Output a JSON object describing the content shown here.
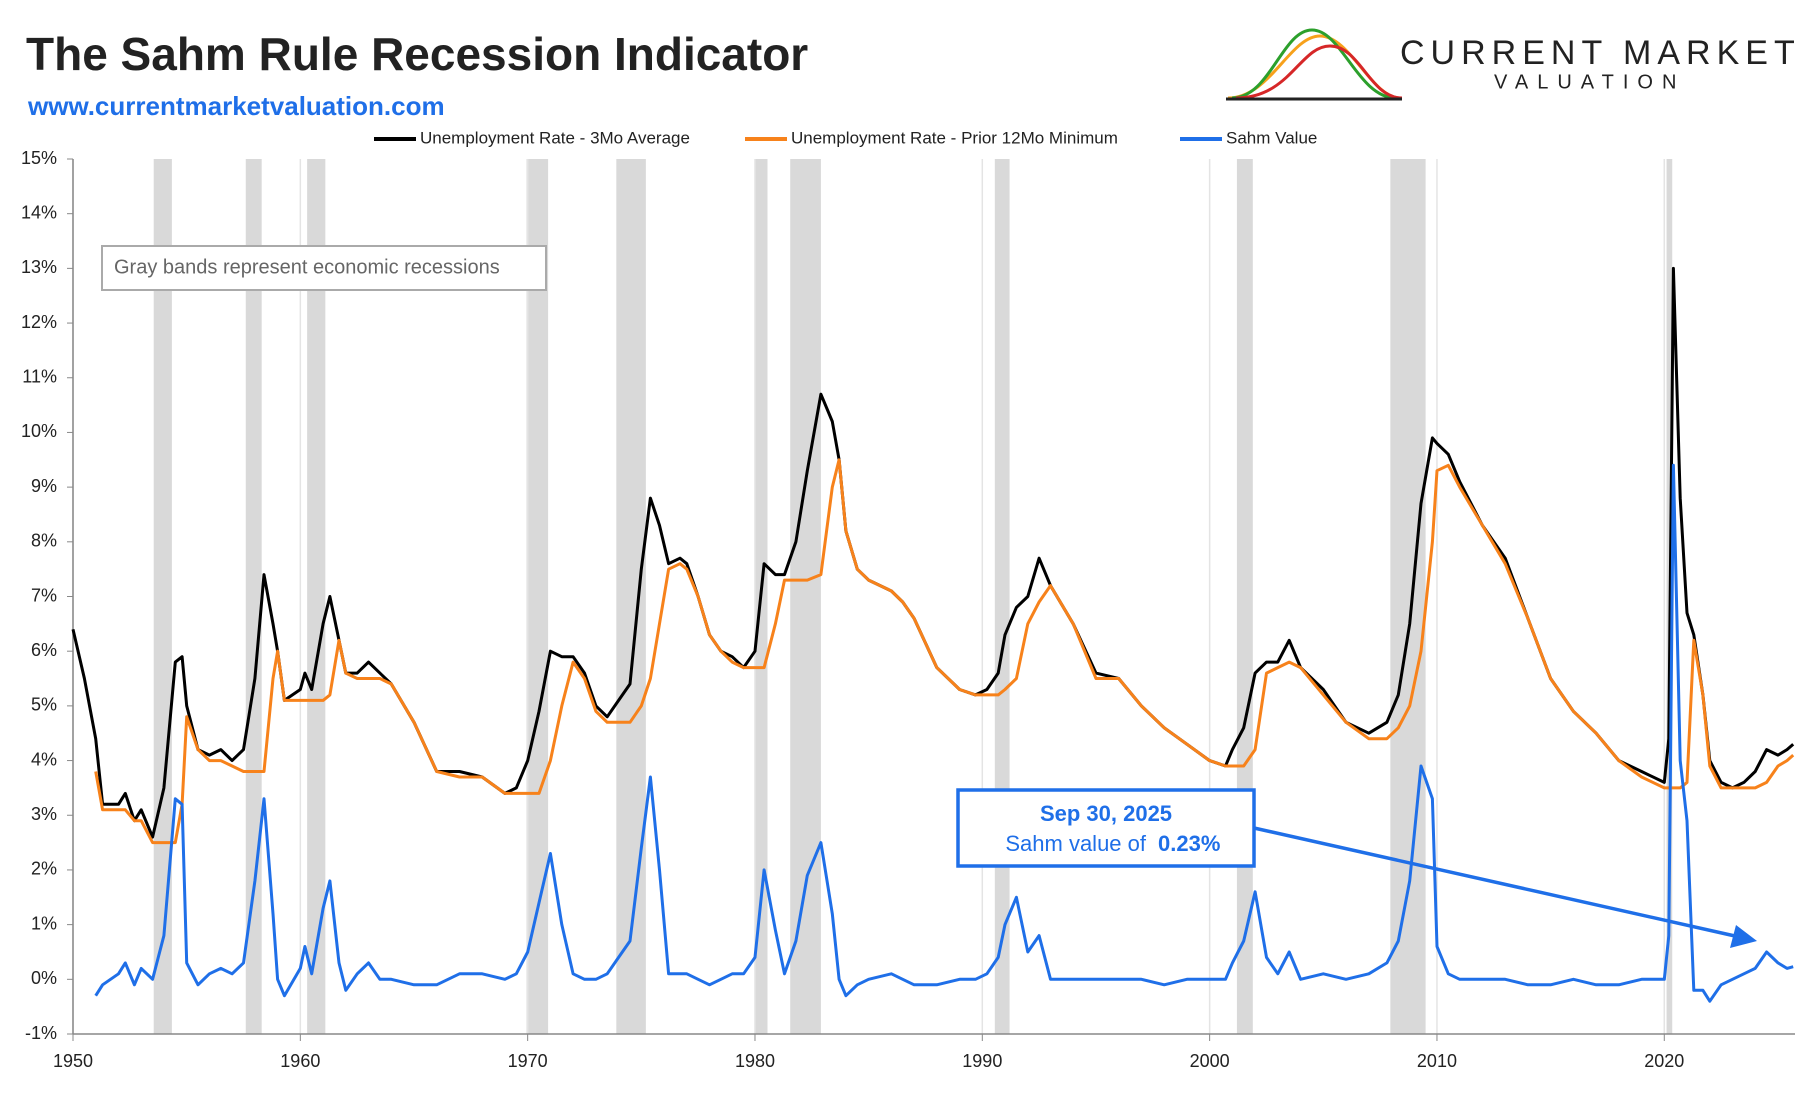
{
  "chart_data": {
    "type": "line",
    "title": "The Sahm Rule Recession Indicator",
    "subtitle": "www.currentmarketvaluation.com",
    "logo": [
      "CURRENT MARKET",
      "VALUATION"
    ],
    "note": "Gray bands represent economic recessions",
    "annotation": {
      "date": "Sep 30, 2025",
      "text": "Sahm value of",
      "value_label": "0.23%"
    },
    "xlim": [
      1950,
      2025.75
    ],
    "xticks": [
      1950,
      1960,
      1970,
      1980,
      1990,
      2000,
      2010,
      2020
    ],
    "ylim": [
      -1,
      15
    ],
    "yticks": [
      {
        "value": -1,
        "label": "-1%"
      },
      {
        "value": 0,
        "label": "0%"
      },
      {
        "value": 1,
        "label": "1%"
      },
      {
        "value": 2,
        "label": "2%"
      },
      {
        "value": 3,
        "label": "3%"
      },
      {
        "value": 4,
        "label": "4%"
      },
      {
        "value": 5,
        "label": "5%"
      },
      {
        "value": 6,
        "label": "6%"
      },
      {
        "value": 7,
        "label": "7%"
      },
      {
        "value": 8,
        "label": "8%"
      },
      {
        "value": 9,
        "label": "9%"
      },
      {
        "value": 10,
        "label": "10%"
      },
      {
        "value": 11,
        "label": "11%"
      },
      {
        "value": 12,
        "label": "12%"
      },
      {
        "value": 13,
        "label": "13%"
      },
      {
        "value": 14,
        "label": "14%"
      },
      {
        "value": 15,
        "label": "15%"
      }
    ],
    "grid": true,
    "recession_color": "#d9d9d9",
    "recessions": [
      [
        1953.55,
        1954.35
      ],
      [
        1957.6,
        1958.3
      ],
      [
        1960.3,
        1961.1
      ],
      [
        1969.95,
        1970.9
      ],
      [
        1973.9,
        1975.2
      ],
      [
        1980.0,
        1980.55
      ],
      [
        1981.55,
        1982.9
      ],
      [
        1990.55,
        1991.2
      ],
      [
        2001.2,
        2001.9
      ],
      [
        2007.95,
        2009.5
      ],
      [
        2020.1,
        2020.35
      ]
    ],
    "x": [
      1950.0,
      1950.5,
      1951.0,
      1951.3,
      1952.0,
      1952.3,
      1952.7,
      1953.0,
      1953.5,
      1954.0,
      1954.5,
      1954.8,
      1955.0,
      1955.5,
      1956.0,
      1956.5,
      1957.0,
      1957.5,
      1958.0,
      1958.4,
      1958.8,
      1959.0,
      1959.3,
      1960.0,
      1960.2,
      1960.5,
      1961.0,
      1961.3,
      1961.7,
      1962.0,
      1962.5,
      1963.0,
      1963.5,
      1964.0,
      1965.0,
      1966.0,
      1967.0,
      1968.0,
      1969.0,
      1969.5,
      1970.0,
      1970.5,
      1971.0,
      1971.5,
      1972.0,
      1972.5,
      1973.0,
      1973.5,
      1974.0,
      1974.5,
      1975.0,
      1975.4,
      1975.8,
      1976.2,
      1976.7,
      1977.0,
      1977.5,
      1978.0,
      1978.5,
      1979.0,
      1979.5,
      1980.0,
      1980.4,
      1980.9,
      1981.3,
      1981.8,
      1982.3,
      1982.9,
      1983.4,
      1983.7,
      1984.0,
      1984.5,
      1985.0,
      1986.0,
      1986.5,
      1987.0,
      1988.0,
      1989.0,
      1989.7,
      1990.2,
      1990.7,
      1991.0,
      1991.5,
      1992.0,
      1992.5,
      1993.0,
      1994.0,
      1995.0,
      1996.0,
      1997.0,
      1998.0,
      1999.0,
      2000.0,
      2000.7,
      2001.0,
      2001.5,
      2002.0,
      2002.5,
      2003.0,
      2003.5,
      2004.0,
      2005.0,
      2006.0,
      2007.0,
      2007.8,
      2008.3,
      2008.8,
      2009.3,
      2009.8,
      2010.0,
      2010.5,
      2011.0,
      2012.0,
      2013.0,
      2014.0,
      2015.0,
      2016.0,
      2017.0,
      2018.0,
      2019.0,
      2020.0,
      2020.2,
      2020.4,
      2020.7,
      2021.0,
      2021.3,
      2021.7,
      2022.0,
      2022.5,
      2023.0,
      2023.5,
      2024.0,
      2024.5,
      2025.0,
      2025.4,
      2025.67
    ],
    "series": [
      {
        "name": "Unemployment Rate - 3Mo Average",
        "color": "#000000",
        "values": [
          6.4,
          5.5,
          4.4,
          3.2,
          3.2,
          3.4,
          2.9,
          3.1,
          2.6,
          3.5,
          5.8,
          5.9,
          5.0,
          4.2,
          4.1,
          4.2,
          4.0,
          4.2,
          5.5,
          7.4,
          6.5,
          6.0,
          5.1,
          5.3,
          5.6,
          5.3,
          6.5,
          7.0,
          6.2,
          5.6,
          5.6,
          5.8,
          5.6,
          5.4,
          4.7,
          3.8,
          3.8,
          3.7,
          3.4,
          3.5,
          4.0,
          4.9,
          6.0,
          5.9,
          5.9,
          5.6,
          5.0,
          4.8,
          5.1,
          5.4,
          7.5,
          8.8,
          8.3,
          7.6,
          7.7,
          7.6,
          7.0,
          6.3,
          6.0,
          5.9,
          5.7,
          6.0,
          7.6,
          7.4,
          7.4,
          8.0,
          9.3,
          10.7,
          10.2,
          9.5,
          8.2,
          7.5,
          7.3,
          7.1,
          6.9,
          6.6,
          5.7,
          5.3,
          5.2,
          5.3,
          5.6,
          6.3,
          6.8,
          7.0,
          7.7,
          7.2,
          6.5,
          5.6,
          5.5,
          5.0,
          4.6,
          4.3,
          4.0,
          3.9,
          4.2,
          4.6,
          5.6,
          5.8,
          5.8,
          6.2,
          5.7,
          5.3,
          4.7,
          4.5,
          4.7,
          5.2,
          6.5,
          8.7,
          9.9,
          9.8,
          9.6,
          9.1,
          8.3,
          7.7,
          6.6,
          5.5,
          4.9,
          4.5,
          4.0,
          3.8,
          3.6,
          4.4,
          13.0,
          8.8,
          6.7,
          6.3,
          5.2,
          4.0,
          3.6,
          3.5,
          3.6,
          3.8,
          4.2,
          4.1,
          4.2,
          4.3
        ]
      },
      {
        "name": "Unemployment Rate - Prior 12Mo Minimum",
        "color": "#f7821b",
        "values": [
          null,
          null,
          3.8,
          3.1,
          3.1,
          3.1,
          2.9,
          2.9,
          2.5,
          2.5,
          2.5,
          3.2,
          4.8,
          4.2,
          4.0,
          4.0,
          3.9,
          3.8,
          3.8,
          3.8,
          5.5,
          6.0,
          5.1,
          5.1,
          5.1,
          5.1,
          5.1,
          5.2,
          6.2,
          5.6,
          5.5,
          5.5,
          5.5,
          5.4,
          4.7,
          3.8,
          3.7,
          3.7,
          3.4,
          3.4,
          3.4,
          3.4,
          4.0,
          5.0,
          5.8,
          5.5,
          4.9,
          4.7,
          4.7,
          4.7,
          5.0,
          5.5,
          6.5,
          7.5,
          7.6,
          7.5,
          7.0,
          6.3,
          6.0,
          5.8,
          5.7,
          5.7,
          5.7,
          6.5,
          7.3,
          7.3,
          7.3,
          7.4,
          9.0,
          9.5,
          8.2,
          7.5,
          7.3,
          7.1,
          6.9,
          6.6,
          5.7,
          5.3,
          5.2,
          5.2,
          5.2,
          5.3,
          5.5,
          6.5,
          6.9,
          7.2,
          6.5,
          5.5,
          5.5,
          5.0,
          4.6,
          4.3,
          4.0,
          3.9,
          3.9,
          3.9,
          4.2,
          5.6,
          5.7,
          5.8,
          5.7,
          5.2,
          4.7,
          4.4,
          4.4,
          4.6,
          5.0,
          6.0,
          8.0,
          9.3,
          9.4,
          9.0,
          8.3,
          7.6,
          6.6,
          5.5,
          4.9,
          4.5,
          4.0,
          3.7,
          3.5,
          3.5,
          3.5,
          3.5,
          3.6,
          6.2,
          5.2,
          3.9,
          3.5,
          3.5,
          3.5,
          3.5,
          3.6,
          3.9,
          4.0,
          4.1
        ]
      },
      {
        "name": "Sahm Value",
        "color": "#1f6fe8",
        "values": [
          null,
          null,
          -0.3,
          -0.1,
          0.1,
          0.3,
          -0.1,
          0.2,
          0.0,
          0.8,
          3.3,
          3.2,
          0.3,
          -0.1,
          0.1,
          0.2,
          0.1,
          0.3,
          1.8,
          3.3,
          1.2,
          0.0,
          -0.3,
          0.2,
          0.6,
          0.1,
          1.3,
          1.8,
          0.3,
          -0.2,
          0.1,
          0.3,
          0.0,
          0.0,
          -0.1,
          -0.1,
          0.1,
          0.1,
          0.0,
          0.1,
          0.5,
          1.4,
          2.3,
          1.0,
          0.1,
          0.0,
          0.0,
          0.1,
          0.4,
          0.7,
          2.4,
          3.7,
          2.0,
          0.1,
          0.1,
          0.1,
          0.0,
          -0.1,
          0.0,
          0.1,
          0.1,
          0.4,
          2.0,
          0.9,
          0.1,
          0.7,
          1.9,
          2.5,
          1.2,
          0.0,
          -0.3,
          -0.1,
          0.0,
          0.1,
          0.0,
          -0.1,
          -0.1,
          0.0,
          0.0,
          0.1,
          0.4,
          1.0,
          1.5,
          0.5,
          0.8,
          0.0,
          0.0,
          0.0,
          0.0,
          0.0,
          -0.1,
          0.0,
          0.0,
          0.0,
          0.3,
          0.7,
          1.6,
          0.4,
          0.1,
          0.5,
          0.0,
          0.1,
          0.0,
          0.1,
          0.3,
          0.7,
          1.8,
          3.9,
          3.3,
          0.6,
          0.1,
          0.0,
          0.0,
          0.0,
          -0.1,
          -0.1,
          0.0,
          -0.1,
          -0.1,
          0.0,
          0.0,
          0.8,
          9.4,
          4.0,
          2.9,
          -0.2,
          -0.2,
          -0.4,
          -0.1,
          0.0,
          0.1,
          0.2,
          0.5,
          0.3,
          0.2,
          0.23
        ]
      }
    ]
  }
}
